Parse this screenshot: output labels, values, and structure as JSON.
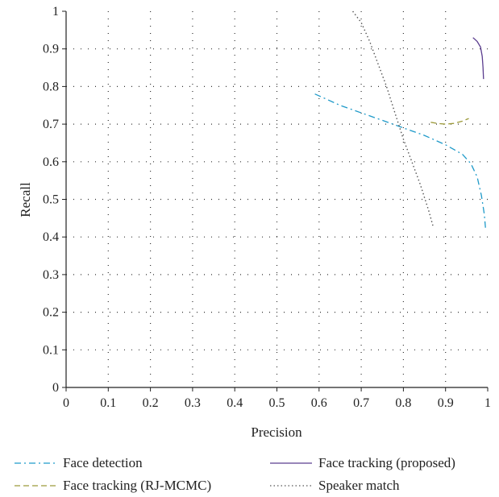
{
  "chart_data": {
    "type": "line",
    "title": "",
    "xlabel": "Precision",
    "ylabel": "Recall",
    "xlim": [
      0,
      1
    ],
    "ylim": [
      0,
      1
    ],
    "x_ticks": [
      "0",
      "0.1",
      "0.2",
      "0.3",
      "0.4",
      "0.5",
      "0.6",
      "0.7",
      "0.8",
      "0.9",
      "1"
    ],
    "y_ticks": [
      "0",
      "0.1",
      "0.2",
      "0.3",
      "0.4",
      "0.5",
      "0.6",
      "0.7",
      "0.8",
      "0.9",
      "1"
    ],
    "grid": true,
    "legend_position": "bottom",
    "series": [
      {
        "name": "Face detection",
        "color": "#1f9ac9",
        "style": "dash-dot",
        "points": [
          [
            0.59,
            0.78
          ],
          [
            0.62,
            0.765
          ],
          [
            0.65,
            0.75
          ],
          [
            0.7,
            0.73
          ],
          [
            0.75,
            0.71
          ],
          [
            0.8,
            0.69
          ],
          [
            0.85,
            0.67
          ],
          [
            0.9,
            0.645
          ],
          [
            0.94,
            0.62
          ],
          [
            0.96,
            0.595
          ],
          [
            0.975,
            0.56
          ],
          [
            0.985,
            0.51
          ],
          [
            0.992,
            0.46
          ],
          [
            0.995,
            0.42
          ]
        ]
      },
      {
        "name": "Face tracking (proposed)",
        "color": "#5b3d8f",
        "style": "solid",
        "points": [
          [
            0.965,
            0.93
          ],
          [
            0.975,
            0.92
          ],
          [
            0.983,
            0.905
          ],
          [
            0.987,
            0.88
          ],
          [
            0.989,
            0.85
          ],
          [
            0.99,
            0.82
          ]
        ]
      },
      {
        "name": "Face tracking (RJ-MCMC)",
        "color": "#9c9a3a",
        "style": "dash",
        "points": [
          [
            0.865,
            0.705
          ],
          [
            0.88,
            0.702
          ],
          [
            0.9,
            0.7
          ],
          [
            0.92,
            0.702
          ],
          [
            0.94,
            0.708
          ],
          [
            0.955,
            0.715
          ]
        ]
      },
      {
        "name": "Speaker match",
        "color": "#555555",
        "style": "dot",
        "points": [
          [
            0.68,
            1.0
          ],
          [
            0.7,
            0.97
          ],
          [
            0.72,
            0.92
          ],
          [
            0.74,
            0.86
          ],
          [
            0.76,
            0.8
          ],
          [
            0.78,
            0.73
          ],
          [
            0.8,
            0.66
          ],
          [
            0.82,
            0.6
          ],
          [
            0.84,
            0.54
          ],
          [
            0.86,
            0.47
          ],
          [
            0.87,
            0.43
          ]
        ]
      }
    ]
  }
}
